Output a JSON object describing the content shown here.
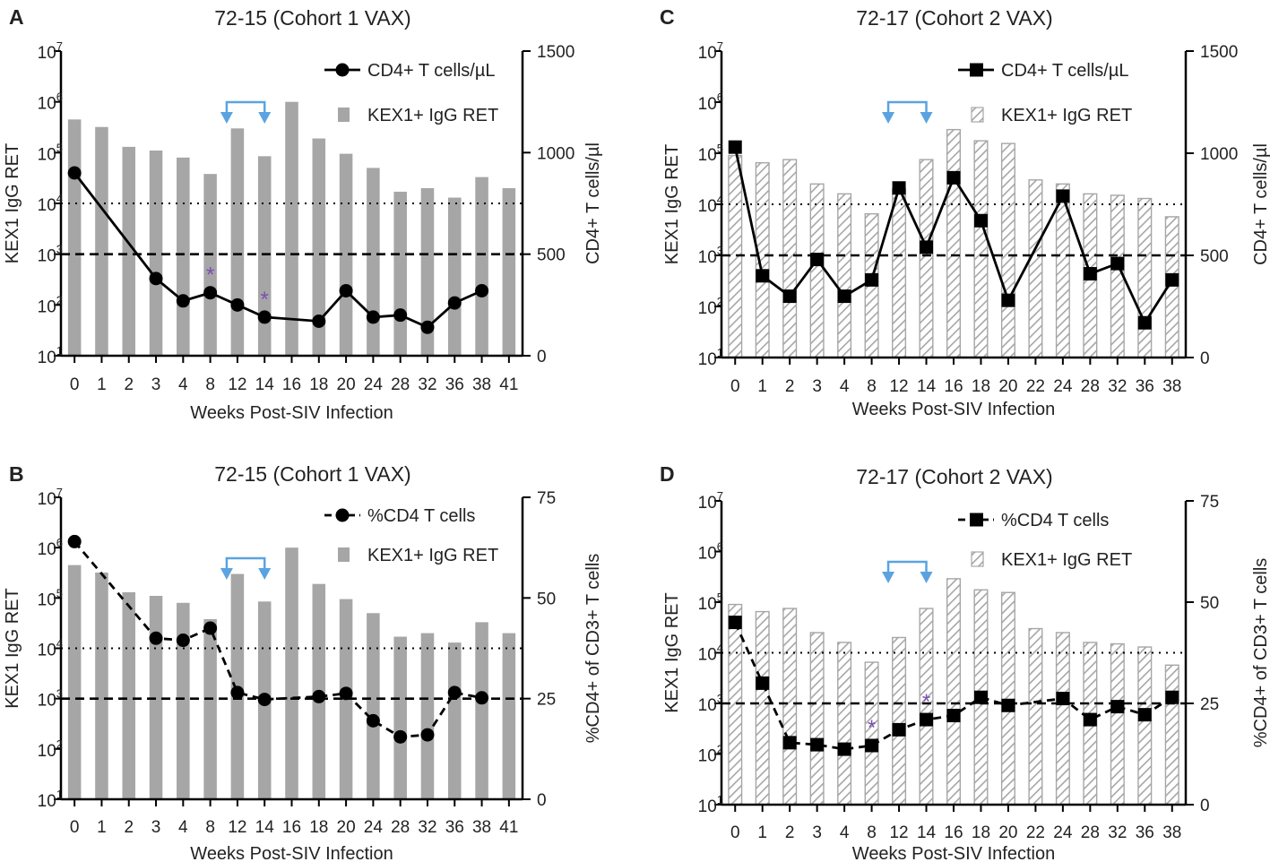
{
  "figure": {
    "x_axis_label": "Weeks Post-SIV Infection",
    "left_axis_label": "KEX1 IgG RET",
    "left_axis_ticks": [
      {
        "base": "10",
        "exp": "1"
      },
      {
        "base": "10",
        "exp": "2"
      },
      {
        "base": "10",
        "exp": "3"
      },
      {
        "base": "10",
        "exp": "4"
      },
      {
        "base": "10",
        "exp": "5"
      },
      {
        "base": "10",
        "exp": "6"
      },
      {
        "base": "10",
        "exp": "7"
      }
    ]
  },
  "chart_data": [
    {
      "panel": "A",
      "type": "bar",
      "title": "72-15 (Cohort 1 VAX)",
      "xlabel": "Weeks Post-SIV Infection",
      "ylabel": "KEX1 IgG RET",
      "y2label": "CD4+ T cells/µl",
      "yscale": "log",
      "ylim": [
        10,
        10000000
      ],
      "y2lim": [
        0,
        1500
      ],
      "y2_ticks": [
        "0",
        "500",
        "1000",
        "1500"
      ],
      "categories": [
        "0",
        "1",
        "2",
        "3",
        "4",
        "8",
        "12",
        "14",
        "16",
        "18",
        "20",
        "24",
        "28",
        "32",
        "36",
        "38",
        "41"
      ],
      "bar_style": "solid-gray",
      "series": [
        {
          "name": "KEX1+ IgG RET",
          "axis": "left",
          "kind": "bar",
          "values": [
            450000,
            320000,
            130000,
            110000,
            80000,
            38000,
            300000,
            85000,
            1000000,
            190000,
            95000,
            50000,
            17000,
            20000,
            13000,
            33000,
            20000
          ]
        },
        {
          "name": "CD4+ T cells/µL",
          "axis": "right",
          "kind": "line",
          "marker": "circle",
          "dash": "solid",
          "values": [
            900,
            null,
            null,
            380,
            270,
            310,
            250,
            190,
            null,
            170,
            320,
            190,
            200,
            140,
            260,
            320,
            null
          ]
        }
      ],
      "reference_lines": [
        {
          "value": 10000,
          "style": "dotted"
        },
        {
          "value": 1000,
          "style": "dashed"
        }
      ],
      "annotations": [
        {
          "text": "*",
          "category": "8"
        },
        {
          "text": "*",
          "category": "14"
        }
      ],
      "bracket": {
        "from": "12",
        "to": "14"
      }
    },
    {
      "panel": "B",
      "type": "bar",
      "title": "72-15 (Cohort 1 VAX)",
      "xlabel": "Weeks Post-SIV Infection",
      "ylabel": "KEX1 IgG RET",
      "y2label": "%CD4+ of CD3+ T cells",
      "yscale": "log",
      "ylim": [
        10,
        10000000
      ],
      "y2lim": [
        0,
        75
      ],
      "y2_ticks": [
        "0",
        "25",
        "50",
        "75"
      ],
      "categories": [
        "0",
        "1",
        "2",
        "3",
        "4",
        "8",
        "12",
        "14",
        "16",
        "18",
        "20",
        "24",
        "28",
        "32",
        "36",
        "38",
        "41"
      ],
      "bar_style": "solid-gray",
      "series": [
        {
          "name": "KEX1+ IgG RET",
          "axis": "left",
          "kind": "bar",
          "values": [
            450000,
            320000,
            130000,
            110000,
            80000,
            38000,
            300000,
            85000,
            1000000,
            190000,
            95000,
            50000,
            17000,
            20000,
            13000,
            33000,
            20000
          ]
        },
        {
          "name": "%CD4 T cells",
          "axis": "right",
          "kind": "line",
          "marker": "circle",
          "dash": "dashed",
          "values": [
            64,
            null,
            null,
            40,
            39.5,
            42.5,
            26.5,
            24.8,
            null,
            25.5,
            26.3,
            19.5,
            15.5,
            16,
            26.5,
            25.2,
            null
          ]
        }
      ],
      "reference_lines": [
        {
          "value": 10000,
          "style": "dotted"
        },
        {
          "value": 1000,
          "style": "dashed"
        }
      ],
      "annotations": [],
      "bracket": {
        "from": "12",
        "to": "14"
      }
    },
    {
      "panel": "C",
      "type": "bar",
      "title": "72-17 (Cohort 2 VAX)",
      "xlabel": "Weeks Post-SIV Infection",
      "ylabel": "KEX1 IgG RET",
      "y2label": "CD4+ T cells/µl",
      "yscale": "log",
      "ylim": [
        10,
        10000000
      ],
      "y2lim": [
        0,
        1500
      ],
      "y2_ticks": [
        "0",
        "500",
        "1000",
        "1500"
      ],
      "categories": [
        "0",
        "1",
        "2",
        "3",
        "4",
        "8",
        "12",
        "14",
        "16",
        "18",
        "20",
        "22",
        "24",
        "28",
        "32",
        "36",
        "38"
      ],
      "bar_style": "hatched",
      "series": [
        {
          "name": "KEX1+ IgG RET",
          "axis": "left",
          "kind": "bar",
          "values": [
            90000,
            65000,
            75000,
            25000,
            16000,
            6500,
            20000,
            75000,
            290000,
            175000,
            155000,
            30000,
            25000,
            16000,
            15000,
            13000,
            5700
          ]
        },
        {
          "name": "CD4+ T cells/µL",
          "axis": "right",
          "kind": "line",
          "marker": "square",
          "dash": "solid",
          "values": [
            1030,
            400,
            300,
            480,
            300,
            380,
            830,
            540,
            880,
            670,
            280,
            null,
            790,
            410,
            460,
            170,
            380
          ]
        }
      ],
      "reference_lines": [
        {
          "value": 10000,
          "style": "dotted"
        },
        {
          "value": 1000,
          "style": "dashed"
        }
      ],
      "annotations": [],
      "bracket": {
        "from": "12",
        "to": "14"
      }
    },
    {
      "panel": "D",
      "type": "bar",
      "title": "72-17 (Cohort 2 VAX)",
      "xlabel": "Weeks Post-SIV Infection",
      "ylabel": "KEX1 IgG RET",
      "y2label": "%CD4+ of CD3+ T cells",
      "yscale": "log",
      "ylim": [
        10,
        10000000
      ],
      "y2lim": [
        0,
        75
      ],
      "y2_ticks": [
        "0",
        "25",
        "50",
        "75"
      ],
      "categories": [
        "0",
        "1",
        "2",
        "3",
        "4",
        "8",
        "12",
        "14",
        "16",
        "18",
        "20",
        "22",
        "24",
        "28",
        "32",
        "36",
        "38"
      ],
      "bar_style": "hatched",
      "series": [
        {
          "name": "KEX1+ IgG RET",
          "axis": "left",
          "kind": "bar",
          "values": [
            90000,
            65000,
            75000,
            25000,
            16000,
            6500,
            20000,
            75000,
            290000,
            175000,
            155000,
            30000,
            25000,
            16000,
            15000,
            13000,
            5700
          ]
        },
        {
          "name": "%CD4 T cells",
          "axis": "right",
          "kind": "line",
          "marker": "square",
          "dash": "dashed",
          "values": [
            45,
            30,
            15.3,
            14.8,
            13.7,
            14.6,
            18.5,
            21,
            22,
            26.5,
            24.5,
            null,
            26.2,
            21,
            24.2,
            22.2,
            26.5
          ]
        }
      ],
      "reference_lines": [
        {
          "value": 10000,
          "style": "dotted"
        },
        {
          "value": 1000,
          "style": "dashed"
        }
      ],
      "annotations": [
        {
          "text": "*",
          "category": "8"
        },
        {
          "text": "*",
          "category": "14"
        }
      ],
      "bracket": {
        "from": "12",
        "to": "14"
      }
    }
  ],
  "colors": {
    "bar_fill": "#a6a6a6",
    "hatch_stroke": "#a6a6a6",
    "line": "#000000",
    "asterisk": "#7b4fb0",
    "bracket": "#5ba3e0"
  }
}
